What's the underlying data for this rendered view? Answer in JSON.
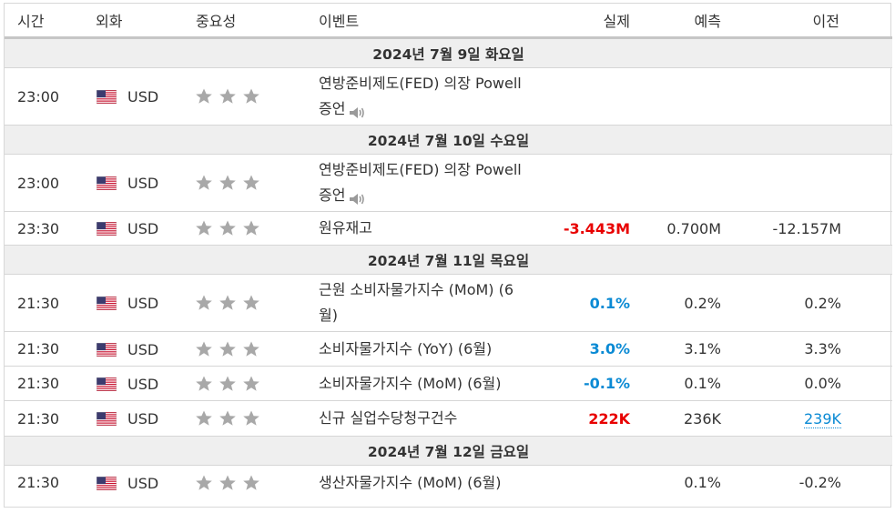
{
  "header": {
    "time": "시간",
    "currency": "외화",
    "importance": "중요성",
    "event": "이벤트",
    "actual": "실제",
    "forecast": "예측",
    "previous": "이전"
  },
  "colors": {
    "negative": "#e80000",
    "positive": "#0a8ad4",
    "star": "#a8a8a8",
    "date_row_bg": "#efefef"
  },
  "days": [
    {
      "date": "2024년 7월 9일 화요일",
      "events": [
        {
          "time": "23:00",
          "currency": "USD",
          "stars": 3,
          "line1": "연방준비제도(FED) 의장 Powell",
          "line2": "증언",
          "speech": true,
          "actual": "",
          "actual_color": "",
          "forecast": "",
          "previous": "",
          "previous_revised": false,
          "h": 63
        }
      ]
    },
    {
      "date": "2024년 7월 10일 수요일",
      "events": [
        {
          "time": "23:00",
          "currency": "USD",
          "stars": 3,
          "line1": "연방준비제도(FED) 의장 Powell",
          "line2": "증언",
          "speech": true,
          "actual": "",
          "actual_color": "",
          "forecast": "",
          "previous": "",
          "previous_revised": false,
          "h": 63
        },
        {
          "time": "23:30",
          "currency": "USD",
          "stars": 3,
          "line1": "원유재고",
          "line2": "",
          "speech": false,
          "actual": "-3.443M",
          "actual_color": "neg",
          "forecast": "0.700M",
          "previous": "-12.157M",
          "previous_revised": false,
          "h": 37
        }
      ]
    },
    {
      "date": "2024년 7월 11일 목요일",
      "events": [
        {
          "time": "21:30",
          "currency": "USD",
          "stars": 3,
          "line1": "근원 소비자물가지수 (MoM) (6",
          "line2": "월)",
          "speech": false,
          "actual": "0.1%",
          "actual_color": "pos",
          "forecast": "0.2%",
          "previous": "0.2%",
          "previous_revised": false,
          "h": 63
        },
        {
          "time": "21:30",
          "currency": "USD",
          "stars": 3,
          "line1": "소비자물가지수 (YoY) (6월)",
          "line2": "",
          "speech": false,
          "actual": "3.0%",
          "actual_color": "pos",
          "forecast": "3.1%",
          "previous": "3.3%",
          "previous_revised": false,
          "h": 38
        },
        {
          "time": "21:30",
          "currency": "USD",
          "stars": 3,
          "line1": "소비자물가지수 (MoM) (6월)",
          "line2": "",
          "speech": false,
          "actual": "-0.1%",
          "actual_color": "pos",
          "forecast": "0.1%",
          "previous": "0.0%",
          "previous_revised": false,
          "h": 38
        },
        {
          "time": "21:30",
          "currency": "USD",
          "stars": 3,
          "line1": "신규 실업수당청구건수",
          "line2": "",
          "speech": false,
          "actual": "222K",
          "actual_color": "neg",
          "forecast": "236K",
          "previous": "239K",
          "previous_revised": true,
          "h": 39
        }
      ]
    },
    {
      "date": "2024년 7월 12일 금요일",
      "events": [
        {
          "time": "21:30",
          "currency": "USD",
          "stars": 3,
          "line1": "생산자물가지수 (MoM) (6월)",
          "line2": "",
          "speech": false,
          "actual": "",
          "actual_color": "",
          "forecast": "0.1%",
          "previous": "-0.2%",
          "previous_revised": false,
          "h": 38
        }
      ]
    }
  ]
}
